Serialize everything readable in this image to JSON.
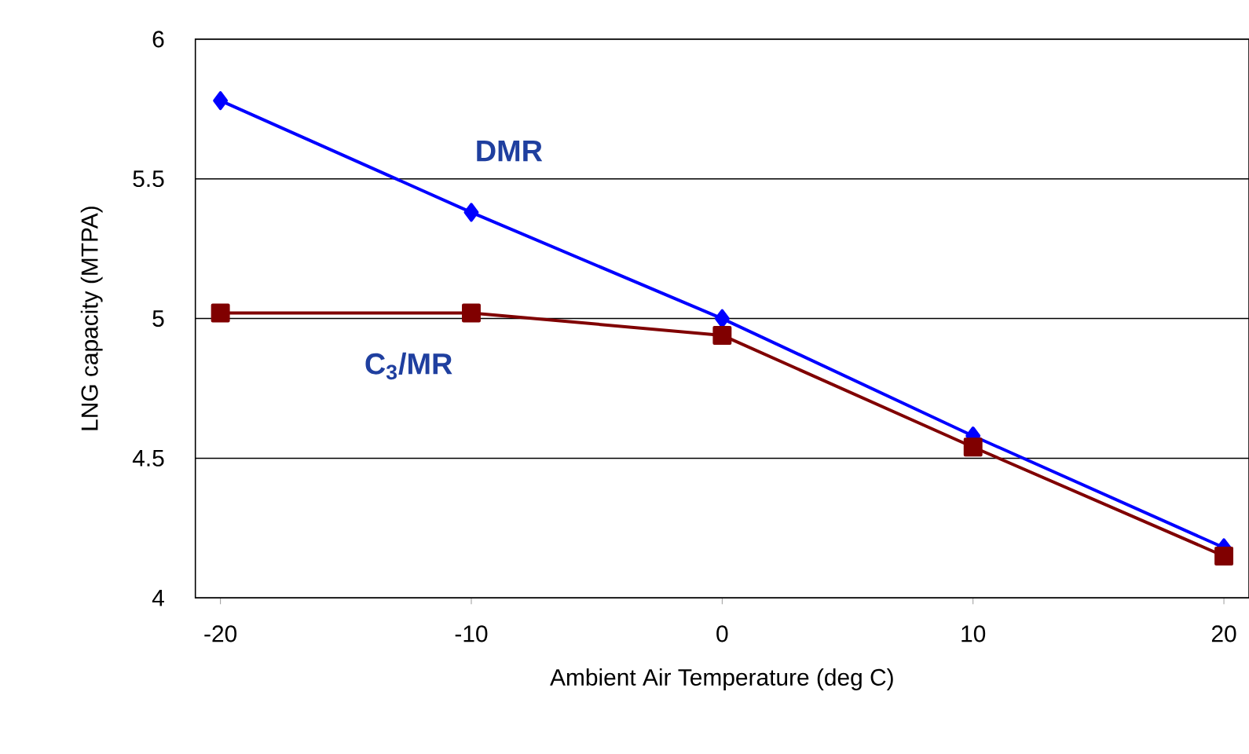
{
  "chart_data": {
    "type": "line",
    "xlabel": "Ambient Air Temperature (deg C)",
    "ylabel": "LNG capacity (MTPA)",
    "x": [
      -20,
      -10,
      0,
      10,
      20
    ],
    "series": [
      {
        "name": "DMR",
        "color": "#0000ff",
        "marker": "diamond",
        "values": [
          5.78,
          5.38,
          5.0,
          4.58,
          4.18
        ]
      },
      {
        "name": "C$_{3}$/MR",
        "color": "#800000",
        "marker": "square",
        "values": [
          5.02,
          5.02,
          4.94,
          4.54,
          4.15
        ]
      }
    ],
    "xlim": [
      -21,
      21
    ],
    "ylim": [
      4,
      6
    ],
    "xticks": [
      -20,
      -10,
      0,
      10,
      20
    ],
    "yticks": [
      4,
      4.5,
      5,
      5.5,
      6
    ],
    "grid": "y",
    "line_style": "solid"
  }
}
